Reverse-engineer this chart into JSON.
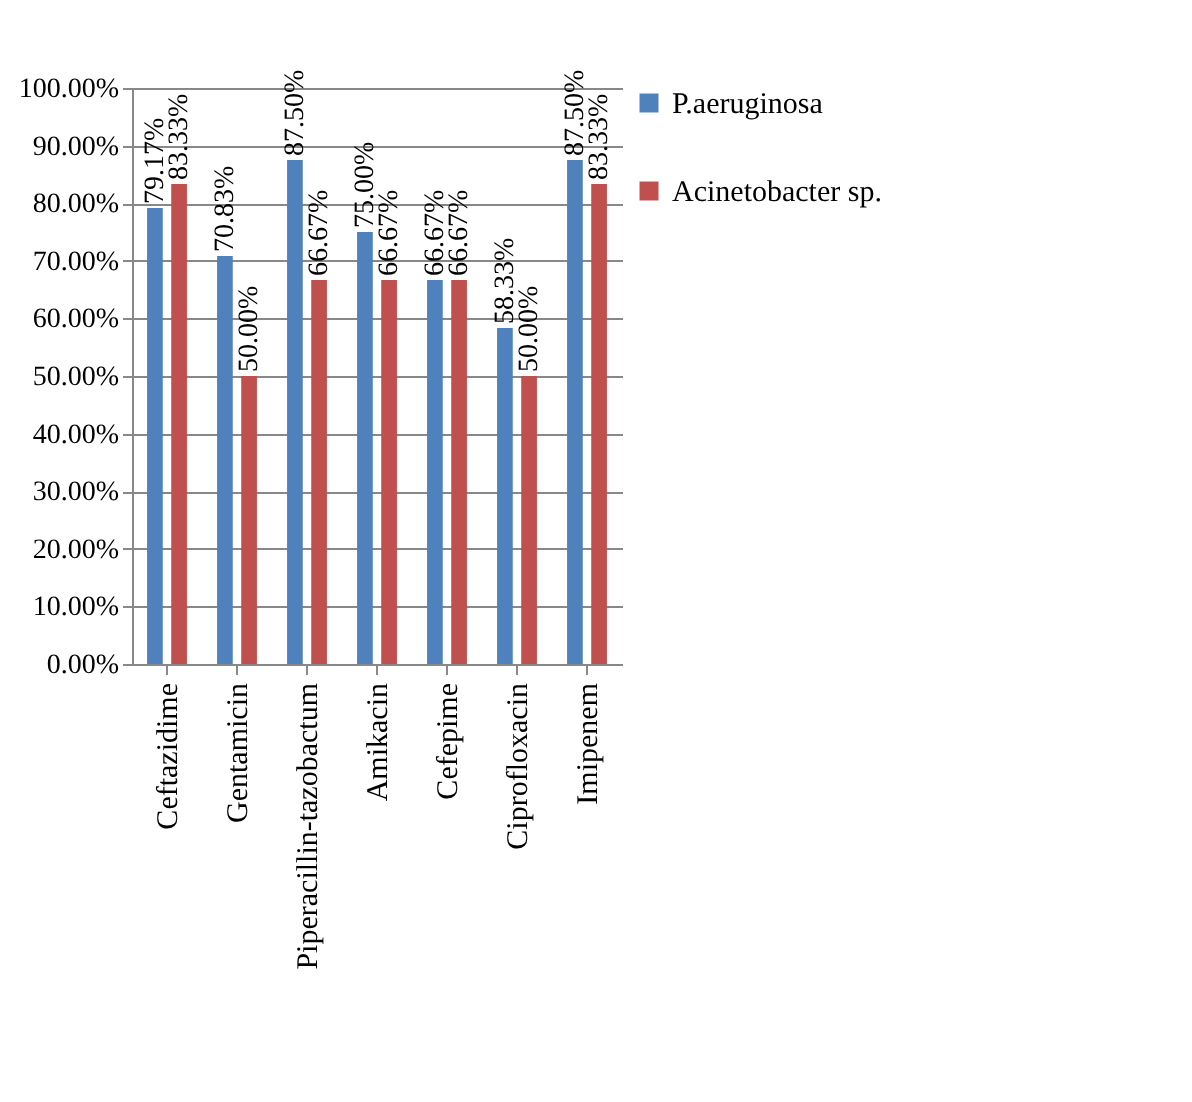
{
  "chart_data": {
    "type": "bar",
    "categories": [
      "Ceftazidime",
      "Gentamicin",
      "Piperacillin-tazobactum",
      "Amikacin",
      "Cefepime",
      "Ciprofloxacin",
      "Imipenem"
    ],
    "series": [
      {
        "name": "P.aeruginosa",
        "color": "#4f81bd",
        "values": [
          79.17,
          70.83,
          87.5,
          75,
          66.67,
          58.33,
          87.5
        ],
        "value_labels": [
          "79.17%",
          "70.83%",
          "87.50%",
          "75.00%",
          "66.67%",
          "58.33%",
          "87.50%"
        ]
      },
      {
        "name": "Acinetobacter sp.",
        "color": "#c0504d",
        "values": [
          83.33,
          50,
          66.67,
          66.67,
          66.67,
          50,
          83.33
        ],
        "value_labels": [
          "83.33%",
          "50.00%",
          "66.67%",
          "66.67%",
          "66.67%",
          "50.00%",
          "83.33%"
        ]
      }
    ],
    "ylim": [
      0,
      100
    ],
    "yticks": [
      {
        "value": 0,
        "label": "0.00%"
      },
      {
        "value": 10,
        "label": "10.00%"
      },
      {
        "value": 20,
        "label": "20.00%"
      },
      {
        "value": 30,
        "label": "30.00%"
      },
      {
        "value": 40,
        "label": "40.00%"
      },
      {
        "value": 50,
        "label": "50.00%"
      },
      {
        "value": 60,
        "label": "60.00%"
      },
      {
        "value": 70,
        "label": "70.00%"
      },
      {
        "value": 80,
        "label": "80.00%"
      },
      {
        "value": 90,
        "label": "90.00%"
      },
      {
        "value": 100,
        "label": "100.00%"
      }
    ],
    "grid": "y",
    "legend": "right"
  }
}
